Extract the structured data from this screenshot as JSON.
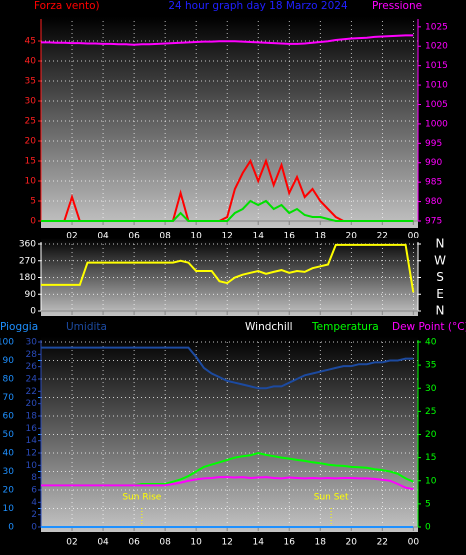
{
  "chart_data": [
    {
      "type": "line",
      "title": "24 hour graph day 18 Marzo 2024",
      "title_color": "#2020ff",
      "x": [
        0,
        0.5,
        1,
        1.5,
        2,
        2.5,
        3,
        3.5,
        4,
        4.5,
        5,
        5.5,
        6,
        6.5,
        7,
        7.5,
        8,
        8.5,
        9,
        9.5,
        10,
        10.5,
        11,
        11.5,
        12,
        12.5,
        13,
        13.5,
        14,
        14.5,
        15,
        15.5,
        16,
        16.5,
        17,
        17.5,
        18,
        18.5,
        19,
        19.5,
        20,
        20.5,
        21,
        21.5,
        22,
        22.5,
        23,
        23.5,
        24
      ],
      "xlim": [
        0,
        24.3
      ],
      "xticks": [
        {
          "value": 2,
          "label": "02"
        },
        {
          "value": 4,
          "label": "04"
        },
        {
          "value": 6,
          "label": "06"
        },
        {
          "value": 8,
          "label": "08"
        },
        10,
        12,
        14,
        16,
        18,
        20,
        22,
        {
          "value": 24,
          "label": "00"
        }
      ],
      "xtick_labels": true,
      "ylim": [
        0,
        50
      ],
      "yticks": [
        0,
        5,
        10,
        15,
        20,
        25,
        30,
        35,
        40,
        45
      ],
      "ycolor": "#ff2020",
      "y2lim": [
        975,
        1026.5
      ],
      "y2ticks": [
        975,
        980,
        985,
        990,
        995,
        1000,
        1005,
        1010,
        1015,
        1020,
        1025
      ],
      "y2color": "#ff00ff",
      "grid": true,
      "series": [
        {
          "name": "Forza vento)",
          "color": "#ff0000",
          "values": [
            0,
            0,
            0,
            0,
            6,
            0,
            0,
            0,
            0,
            0,
            0,
            0,
            0,
            0,
            0,
            0,
            0,
            0,
            7,
            0,
            0,
            0,
            0,
            0,
            1,
            8,
            12,
            15,
            10,
            15,
            9,
            14,
            7,
            11,
            6,
            8,
            5,
            3,
            1,
            0,
            0,
            0,
            0,
            0,
            0,
            0,
            0,
            0,
            0
          ]
        },
        {
          "color": "#00e000",
          "values": [
            0,
            0,
            0,
            0,
            0,
            0,
            0,
            0,
            0,
            0,
            0,
            0,
            0,
            0,
            0,
            0,
            0,
            0,
            2,
            0,
            0,
            0,
            0,
            0,
            0,
            2,
            3,
            5,
            4,
            5,
            3,
            4,
            2,
            3,
            1.5,
            1,
            1,
            0.5,
            0,
            0,
            0,
            0,
            0,
            0,
            0,
            0,
            0,
            0,
            0
          ]
        },
        {
          "name": "Pressione",
          "color": "#ff00ff",
          "axis": "y2",
          "values": [
            1021,
            1021,
            1020.9,
            1020.9,
            1020.8,
            1020.8,
            1020.7,
            1020.7,
            1020.6,
            1020.6,
            1020.5,
            1020.5,
            1020.4,
            1020.5,
            1020.5,
            1020.6,
            1020.7,
            1020.8,
            1020.9,
            1021,
            1021.1,
            1021.2,
            1021.2,
            1021.3,
            1021.3,
            1021.3,
            1021.2,
            1021.1,
            1021,
            1020.9,
            1020.8,
            1020.7,
            1020.6,
            1020.6,
            1020.7,
            1020.9,
            1021.1,
            1021.3,
            1021.6,
            1021.8,
            1022,
            1022.1,
            1022.2,
            1022.4,
            1022.5,
            1022.6,
            1022.7,
            1022.8,
            1022.8
          ]
        }
      ]
    },
    {
      "type": "line",
      "x": [
        0,
        0.5,
        1,
        1.5,
        2,
        2.5,
        3,
        3.5,
        4,
        4.5,
        5,
        5.5,
        6,
        6.5,
        7,
        7.5,
        8,
        8.5,
        9,
        9.5,
        10,
        10.5,
        11,
        11.5,
        12,
        12.5,
        13,
        13.5,
        14,
        14.5,
        15,
        15.5,
        16,
        16.5,
        17,
        17.5,
        18,
        18.5,
        19,
        19.5,
        20,
        20.5,
        21,
        21.5,
        22,
        22.5,
        23,
        23.5,
        24
      ],
      "xlim": [
        0,
        24.3
      ],
      "xticks": [
        2,
        4,
        6,
        8,
        10,
        12,
        14,
        16,
        18,
        20,
        22,
        24
      ],
      "xtick_labels": false,
      "ylim": [
        0,
        360
      ],
      "yticks": [
        0,
        90,
        180,
        270,
        360
      ],
      "ycolor": "#ffffff",
      "y2lim": [
        0,
        360
      ],
      "y2ticks": [
        {
          "value": 360,
          "label": "N"
        },
        {
          "value": 270,
          "label": "W"
        },
        {
          "value": 180,
          "label": "S"
        },
        {
          "value": 90,
          "label": "E"
        },
        {
          "value": 0,
          "label": "N"
        }
      ],
      "y2color": "#ffffff",
      "grid": true,
      "series": [
        {
          "color": "#ffff00",
          "values": [
            140,
            140,
            140,
            140,
            140,
            140,
            260,
            260,
            260,
            260,
            260,
            260,
            260,
            260,
            260,
            260,
            260,
            260,
            270,
            260,
            215,
            215,
            215,
            160,
            150,
            180,
            195,
            205,
            215,
            200,
            210,
            220,
            205,
            215,
            210,
            230,
            240,
            250,
            355,
            355,
            355,
            355,
            355,
            355,
            355,
            355,
            355,
            355,
            100
          ]
        }
      ]
    },
    {
      "type": "line",
      "x": [
        0,
        0.5,
        1,
        1.5,
        2,
        2.5,
        3,
        3.5,
        4,
        4.5,
        5,
        5.5,
        6,
        6.5,
        7,
        7.5,
        8,
        8.5,
        9,
        9.5,
        10,
        10.5,
        11,
        11.5,
        12,
        12.5,
        13,
        13.5,
        14,
        14.5,
        15,
        15.5,
        16,
        16.5,
        17,
        17.5,
        18,
        18.5,
        19,
        19.5,
        20,
        20.5,
        21,
        21.5,
        22,
        22.5,
        23,
        23.5,
        24
      ],
      "xlim": [
        0,
        24.3
      ],
      "xticks": [
        {
          "value": 2,
          "label": "02"
        },
        {
          "value": 4,
          "label": "04"
        },
        {
          "value": 6,
          "label": "06"
        },
        {
          "value": 8,
          "label": "08"
        },
        10,
        12,
        14,
        16,
        18,
        20,
        22,
        {
          "value": 24,
          "label": "00"
        }
      ],
      "xtick_labels": true,
      "ylim": [
        0,
        100
      ],
      "yticks": [
        0,
        10,
        20,
        30,
        40,
        50,
        60,
        70,
        80,
        90,
        100
      ],
      "ycolor": "#1e90ff",
      "y3lim": [
        0,
        30
      ],
      "y3ticks": [
        0,
        2,
        4,
        6,
        8,
        10,
        12,
        14,
        16,
        18,
        20,
        22,
        24,
        26,
        28,
        30
      ],
      "y3color": "#2a4ab8",
      "y2lim": [
        0,
        40
      ],
      "y2ticks": [
        0,
        5,
        10,
        15,
        20,
        25,
        30,
        35,
        40
      ],
      "y2color": "#00ff00",
      "grid": true,
      "windchill_label": "Windchill",
      "annotations": [
        {
          "x": 6.5,
          "label": "Sun Rise"
        },
        {
          "x": 18.7,
          "label": "Sun Set"
        }
      ],
      "series": [
        {
          "name": "Pioggia",
          "color": "#1e90ff",
          "values": [
            0,
            0,
            0,
            0,
            0,
            0,
            0,
            0,
            0,
            0,
            0,
            0,
            0,
            0,
            0,
            0,
            0,
            0,
            0,
            0,
            0,
            0,
            0,
            0,
            0,
            0,
            0,
            0,
            0,
            0,
            0,
            0,
            0,
            0,
            0,
            0,
            0,
            0,
            0,
            0,
            0,
            0,
            0,
            0,
            0,
            0,
            0,
            0,
            0
          ]
        },
        {
          "name": "Umidita",
          "color": "#1c4aa0",
          "values": [
            97,
            97,
            97,
            97,
            97,
            97,
            97,
            97,
            97,
            97,
            97,
            97,
            97,
            97,
            97,
            97,
            97,
            97,
            97,
            97,
            92,
            86,
            83,
            81,
            79,
            78,
            77,
            76,
            75,
            75,
            76,
            76,
            78,
            80,
            82,
            83,
            84,
            85,
            86,
            87,
            87,
            88,
            88,
            89,
            89,
            90,
            90,
            91,
            91
          ]
        },
        {
          "name": "Temperatura",
          "color": "#00ff00",
          "axis": "y2",
          "values": [
            9,
            9,
            9,
            9,
            9,
            9,
            9,
            9,
            9,
            9,
            9,
            9,
            9,
            9.3,
            9.3,
            9.3,
            9.3,
            9.8,
            10.3,
            11,
            12,
            13,
            13.5,
            14,
            14.5,
            15,
            15.3,
            15.5,
            16,
            15.6,
            15.3,
            15,
            14.8,
            14.5,
            14.3,
            14,
            13.8,
            13.5,
            13.3,
            13.2,
            13,
            12.9,
            12.8,
            12.5,
            12.3,
            12,
            11.5,
            10.5,
            9.8
          ]
        },
        {
          "name": "Dew Point (°C)",
          "color": "#ff00ff",
          "axis": "y2",
          "values": [
            9,
            9,
            9,
            9,
            9,
            9,
            9,
            9,
            9,
            9,
            9,
            9,
            9,
            9,
            9,
            9,
            9,
            9.3,
            9.6,
            10,
            10.3,
            10.5,
            10.6,
            10.8,
            10.8,
            10.7,
            10.8,
            10.6,
            10.7,
            10.8,
            10.6,
            10.5,
            10.7,
            10.6,
            10.5,
            10.6,
            10.5,
            10.6,
            10.5,
            10.6,
            10.6,
            10.5,
            10.5,
            10.4,
            10.2,
            10,
            9.3,
            8.5,
            8.2
          ]
        }
      ]
    }
  ]
}
